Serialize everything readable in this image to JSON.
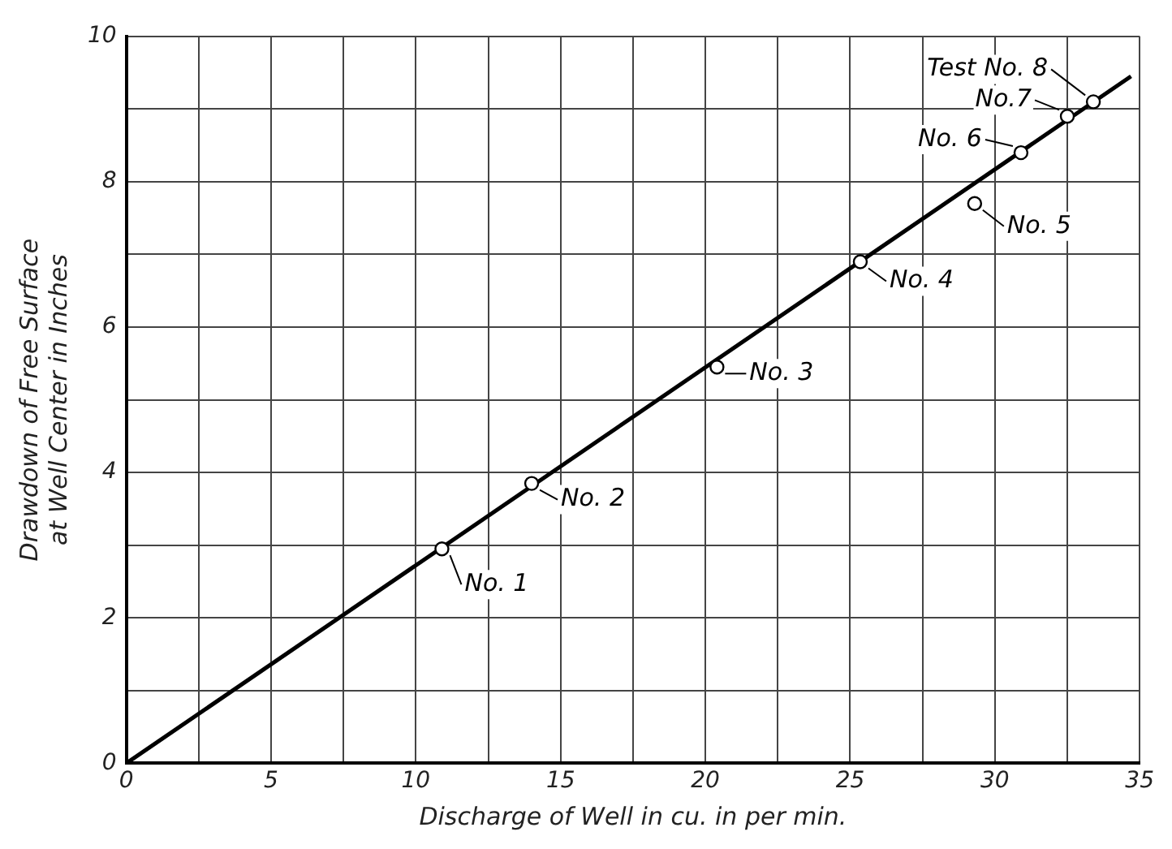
{
  "chart_data": {
    "type": "scatter",
    "xlabel": "Discharge of Well in cu. in per min.",
    "ylabel": "Drawdown of Free Surface\nat Well Center in Inches",
    "series": [
      {
        "color": "#000000",
        "x": [
          10.9,
          14.0,
          20.4,
          25.35,
          29.3,
          30.9,
          32.5,
          33.4
        ],
        "values": [
          2.95,
          3.85,
          5.45,
          6.9,
          7.7,
          8.4,
          8.9,
          9.1
        ]
      },
      {
        "type": "line",
        "color": "#000000",
        "x": [
          0,
          34.7
        ],
        "values": [
          0,
          9.45
        ],
        "marker": "none"
      }
    ],
    "marker": "circle",
    "line_style": "solid",
    "xlim": [
      0,
      35
    ],
    "ylim": [
      0,
      10
    ],
    "xticks": [
      0,
      {
        "value": 2.5,
        "label": null
      },
      5,
      {
        "value": 7.5,
        "label": null
      },
      10,
      {
        "value": 12.5,
        "label": null
      },
      15,
      {
        "value": 17.5,
        "label": null
      },
      20,
      {
        "value": 22.5,
        "label": null
      },
      25,
      {
        "value": 27.5,
        "label": null
      },
      30,
      {
        "value": 32.5,
        "label": null
      },
      35
    ],
    "yticks": [
      0,
      {
        "value": 1,
        "label": null
      },
      2,
      {
        "value": 3,
        "label": null
      },
      4,
      {
        "value": 5,
        "label": null
      },
      6,
      {
        "value": 7,
        "label": null
      },
      8,
      {
        "value": 9,
        "label": null
      },
      10
    ],
    "grid": true,
    "legend": false,
    "annotations": [
      {
        "text": "No. 1",
        "x": 10.9,
        "y": 2.95
      },
      {
        "text": "No. 2",
        "x": 14.0,
        "y": 3.85
      },
      {
        "text": "No. 3",
        "x": 20.4,
        "y": 5.45
      },
      {
        "text": "No. 4",
        "x": 25.35,
        "y": 6.9
      },
      {
        "text": "No. 5",
        "x": 29.3,
        "y": 7.7
      },
      {
        "text": "No. 6",
        "x": 30.9,
        "y": 8.4
      },
      {
        "text": "No.7",
        "x": 32.5,
        "y": 8.9
      },
      {
        "text": "Test No. 8",
        "x": 33.4,
        "y": 9.1
      }
    ]
  }
}
